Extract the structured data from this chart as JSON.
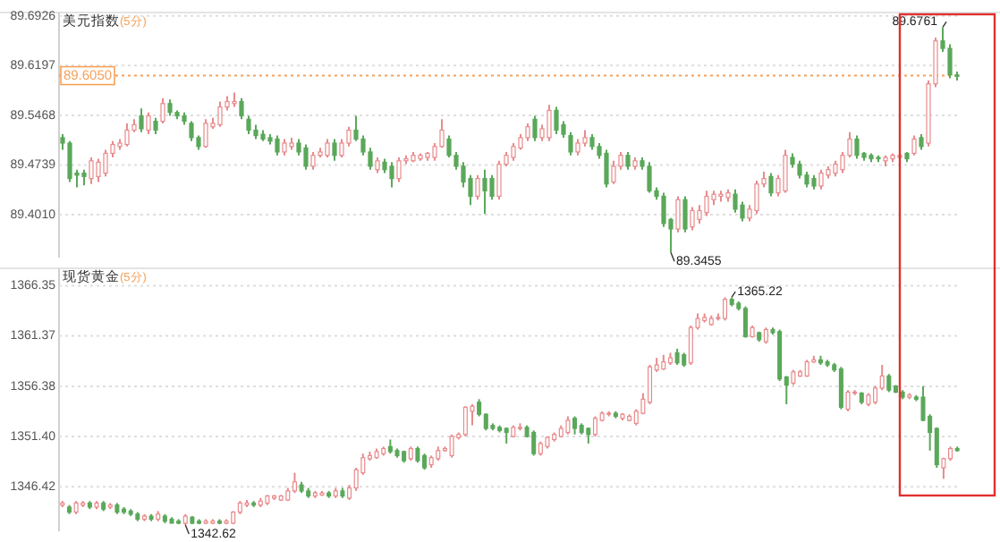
{
  "chart_data": [
    {
      "type": "candlestick",
      "title": "美元指数",
      "subtitle": "(5分)",
      "tick_labels": "y",
      "grid": "y",
      "ylim": [
        89.338,
        89.695
      ],
      "yticks": [
        {
          "value": 89.401,
          "label": "89.4010"
        },
        89.4739,
        89.5468,
        89.6197,
        89.6926
      ],
      "ref_lines": [
        {
          "axis": "y",
          "value": 89.605,
          "label": "89.6050",
          "color": "#f5a15a",
          "line_style": "dotted"
        }
      ],
      "annotations": [
        "89.6761",
        "89.3455"
      ],
      "categories": [
        null,
        null,
        null,
        null,
        null,
        null,
        null,
        null,
        null,
        null,
        null,
        null,
        null,
        null,
        null,
        null,
        null,
        null,
        null,
        null,
        null,
        null,
        null,
        null,
        null,
        null,
        null,
        null,
        null,
        null,
        null,
        null,
        null,
        null,
        null,
        null,
        null,
        null,
        null,
        null,
        null,
        null,
        null,
        null,
        null,
        null,
        null,
        null,
        null,
        null,
        null,
        null,
        null,
        null,
        null,
        null,
        null,
        null,
        null,
        null,
        null,
        null,
        null,
        null,
        null,
        null,
        null,
        null,
        null,
        null,
        null,
        null,
        null,
        null,
        null,
        null,
        null,
        null,
        null,
        null,
        null,
        null,
        null,
        null,
        null,
        null,
        null,
        null,
        null,
        null,
        null,
        null,
        null,
        null,
        null,
        null,
        null,
        null,
        null,
        null,
        null,
        null,
        null,
        null,
        null,
        null,
        null,
        null,
        null,
        null,
        null,
        null,
        null,
        null,
        null,
        null,
        null,
        null,
        null,
        null,
        null,
        null,
        null,
        null,
        null,
        null
      ],
      "ohlc": [
        [
          89.514,
          89.519,
          89.496,
          89.506
        ],
        [
          89.506,
          89.509,
          89.449,
          89.454
        ],
        [
          89.462,
          89.467,
          89.441,
          89.459
        ],
        [
          89.462,
          89.467,
          89.444,
          89.457
        ],
        [
          89.454,
          89.485,
          89.446,
          89.48
        ],
        [
          89.457,
          89.483,
          89.449,
          89.478
        ],
        [
          89.462,
          89.496,
          89.457,
          89.491
        ],
        [
          89.491,
          89.509,
          89.485,
          89.504
        ],
        [
          89.501,
          89.512,
          89.496,
          89.506
        ],
        [
          89.504,
          89.535,
          89.501,
          89.525
        ],
        [
          89.525,
          89.541,
          89.522,
          89.533
        ],
        [
          89.546,
          89.557,
          89.522,
          89.527
        ],
        [
          89.525,
          89.551,
          89.519,
          89.546
        ],
        [
          89.538,
          89.543,
          89.519,
          89.525
        ],
        [
          89.538,
          89.572,
          89.535,
          89.564
        ],
        [
          89.564,
          89.57,
          89.546,
          89.551
        ],
        [
          89.551,
          89.554,
          89.541,
          89.546
        ],
        [
          89.546,
          89.551,
          89.533,
          89.538
        ],
        [
          89.535,
          89.538,
          89.509,
          89.514
        ],
        [
          89.514,
          89.517,
          89.496,
          89.501
        ],
        [
          89.501,
          89.541,
          89.499,
          89.535
        ],
        [
          89.53,
          89.543,
          89.527,
          89.535
        ],
        [
          89.533,
          89.567,
          89.53,
          89.559
        ],
        [
          89.559,
          89.575,
          89.554,
          89.567
        ],
        [
          89.564,
          89.58,
          89.559,
          89.567
        ],
        [
          89.567,
          89.572,
          89.541,
          89.546
        ],
        [
          89.541,
          89.546,
          89.519,
          89.525
        ],
        [
          89.525,
          89.533,
          89.512,
          89.517
        ],
        [
          89.519,
          89.525,
          89.509,
          89.512
        ],
        [
          89.514,
          89.519,
          89.504,
          89.509
        ],
        [
          89.512,
          89.517,
          89.488,
          89.493
        ],
        [
          89.493,
          89.512,
          89.488,
          89.506
        ],
        [
          89.501,
          89.514,
          89.496,
          89.506
        ],
        [
          89.506,
          89.512,
          89.488,
          89.493
        ],
        [
          89.499,
          89.504,
          89.467,
          89.472
        ],
        [
          89.472,
          89.493,
          89.467,
          89.488
        ],
        [
          89.488,
          89.499,
          89.485,
          89.493
        ],
        [
          89.488,
          89.512,
          89.485,
          89.506
        ],
        [
          89.506,
          89.512,
          89.48,
          89.488
        ],
        [
          89.488,
          89.512,
          89.485,
          89.506
        ],
        [
          89.506,
          89.53,
          89.501,
          89.525
        ],
        [
          89.525,
          89.546,
          89.509,
          89.512
        ],
        [
          89.512,
          89.517,
          89.488,
          89.493
        ],
        [
          89.493,
          89.499,
          89.467,
          89.472
        ],
        [
          89.467,
          89.485,
          89.462,
          89.48
        ],
        [
          89.478,
          89.483,
          89.462,
          89.467
        ],
        [
          89.472,
          89.478,
          89.441,
          89.454
        ],
        [
          89.454,
          89.485,
          89.449,
          89.48
        ],
        [
          89.48,
          89.488,
          89.475,
          89.483
        ],
        [
          89.48,
          89.493,
          89.478,
          89.488
        ],
        [
          89.483,
          89.491,
          89.48,
          89.488
        ],
        [
          89.485,
          89.493,
          89.48,
          89.491
        ],
        [
          89.485,
          89.506,
          89.48,
          89.501
        ],
        [
          89.501,
          89.541,
          89.499,
          89.525
        ],
        [
          89.512,
          89.517,
          89.485,
          89.488
        ],
        [
          89.488,
          89.493,
          89.467,
          89.472
        ],
        [
          89.472,
          89.478,
          89.441,
          89.449
        ],
        [
          89.454,
          89.459,
          89.415,
          89.428
        ],
        [
          89.428,
          89.459,
          89.423,
          89.454
        ],
        [
          89.454,
          89.467,
          89.402,
          89.436
        ],
        [
          89.454,
          89.459,
          89.423,
          89.428
        ],
        [
          89.428,
          89.48,
          89.423,
          89.475
        ],
        [
          89.475,
          89.493,
          89.472,
          89.488
        ],
        [
          89.485,
          89.506,
          89.48,
          89.501
        ],
        [
          89.499,
          89.519,
          89.496,
          89.514
        ],
        [
          89.514,
          89.535,
          89.509,
          89.53
        ],
        [
          89.541,
          89.546,
          89.509,
          89.514
        ],
        [
          89.514,
          89.533,
          89.509,
          89.527
        ],
        [
          89.514,
          89.562,
          89.509,
          89.554
        ],
        [
          89.554,
          89.559,
          89.519,
          89.525
        ],
        [
          89.533,
          89.538,
          89.514,
          89.519
        ],
        [
          89.517,
          89.522,
          89.488,
          89.493
        ],
        [
          89.493,
          89.512,
          89.488,
          89.506
        ],
        [
          89.506,
          89.525,
          89.501,
          89.514
        ],
        [
          89.514,
          89.519,
          89.496,
          89.501
        ],
        [
          89.501,
          89.506,
          89.483,
          89.488
        ],
        [
          89.491,
          89.496,
          89.441,
          89.446
        ],
        [
          89.449,
          89.48,
          89.446,
          89.472
        ],
        [
          89.472,
          89.493,
          89.467,
          89.488
        ],
        [
          89.488,
          89.493,
          89.467,
          89.472
        ],
        [
          89.472,
          89.485,
          89.467,
          89.48
        ],
        [
          89.48,
          89.485,
          89.467,
          89.472
        ],
        [
          89.472,
          89.478,
          89.433,
          89.436
        ],
        [
          89.436,
          89.441,
          89.423,
          89.428
        ],
        [
          89.428,
          89.433,
          89.383,
          89.388
        ],
        [
          89.394,
          89.396,
          89.3455,
          89.38
        ],
        [
          89.38,
          89.428,
          89.375,
          89.423
        ],
        [
          89.423,
          89.428,
          89.375,
          89.38
        ],
        [
          89.383,
          89.412,
          89.378,
          89.407
        ],
        [
          89.394,
          89.415,
          89.388,
          89.407
        ],
        [
          89.404,
          89.436,
          89.399,
          89.428
        ],
        [
          89.423,
          89.436,
          89.415,
          89.431
        ],
        [
          89.428,
          89.436,
          89.42,
          89.431
        ],
        [
          89.426,
          89.438,
          89.42,
          89.433
        ],
        [
          89.431,
          89.438,
          89.404,
          89.409
        ],
        [
          89.415,
          89.42,
          89.391,
          89.396
        ],
        [
          89.396,
          89.415,
          89.391,
          89.409
        ],
        [
          89.407,
          89.451,
          89.402,
          89.446
        ],
        [
          89.446,
          89.464,
          89.441,
          89.454
        ],
        [
          89.457,
          89.462,
          89.428,
          89.433
        ],
        [
          89.433,
          89.459,
          89.428,
          89.454
        ],
        [
          89.436,
          89.496,
          89.433,
          89.488
        ],
        [
          89.485,
          89.491,
          89.47,
          89.475
        ],
        [
          89.475,
          89.48,
          89.454,
          89.459
        ],
        [
          89.459,
          89.464,
          89.441,
          89.446
        ],
        [
          89.454,
          89.459,
          89.438,
          89.443
        ],
        [
          89.443,
          89.467,
          89.438,
          89.462
        ],
        [
          89.459,
          89.472,
          89.454,
          89.467
        ],
        [
          89.462,
          89.48,
          89.457,
          89.475
        ],
        [
          89.467,
          89.493,
          89.462,
          89.488
        ],
        [
          89.488,
          89.522,
          89.485,
          89.512
        ],
        [
          89.512,
          89.517,
          89.483,
          89.488
        ],
        [
          89.491,
          89.493,
          89.48,
          89.485
        ],
        [
          89.488,
          89.491,
          89.478,
          89.483
        ],
        [
          89.485,
          89.488,
          89.478,
          89.483
        ],
        [
          89.48,
          89.488,
          89.472,
          89.485
        ],
        [
          89.483,
          89.491,
          89.478,
          89.488
        ],
        [
          89.485,
          89.491,
          89.48,
          89.488
        ],
        [
          89.491,
          89.493,
          89.478,
          89.483
        ],
        [
          89.491,
          89.517,
          89.488,
          89.512
        ],
        [
          89.514,
          89.519,
          89.496,
          89.501
        ],
        [
          89.506,
          89.598,
          89.501,
          89.593
        ],
        [
          89.593,
          89.661,
          89.588,
          89.656
        ],
        [
          89.656,
          89.6761,
          89.64,
          89.645
        ],
        [
          89.645,
          89.651,
          89.601,
          89.606
        ],
        [
          89.606,
          89.611,
          89.598,
          89.604
        ]
      ]
    },
    {
      "type": "candlestick",
      "title": "现货黄金",
      "subtitle": "(5分)",
      "tick_labels": "y",
      "grid": "y",
      "ylim": [
        1342.0,
        1367.9
      ],
      "yticks": [
        1346.42,
        {
          "value": 1351.4,
          "label": "1351.40"
        },
        1356.38,
        1361.37,
        1366.35
      ],
      "annotations": [
        "1365.22",
        "1342.62"
      ],
      "categories": [
        null,
        null,
        null,
        null,
        null,
        null,
        null,
        null,
        null,
        null,
        null,
        null,
        null,
        null,
        null,
        null,
        null,
        null,
        null,
        null,
        null,
        null,
        null,
        null,
        null,
        null,
        null,
        null,
        null,
        null,
        null,
        null,
        null,
        null,
        null,
        null,
        null,
        null,
        null,
        null,
        null,
        null,
        null,
        null,
        null,
        null,
        null,
        null,
        null,
        null,
        null,
        null,
        null,
        null,
        null,
        null,
        null,
        null,
        null,
        null,
        null,
        null,
        null,
        null,
        null,
        null,
        null,
        null,
        null,
        null,
        null,
        null,
        null,
        null,
        null,
        null,
        null,
        null,
        null,
        null,
        null,
        null,
        null,
        null,
        null,
        null,
        null,
        null,
        null,
        null,
        null,
        null,
        null,
        null,
        null,
        null,
        null,
        null,
        null,
        null,
        null,
        null,
        null,
        null,
        null,
        null,
        null,
        null,
        null,
        null,
        null,
        null,
        null,
        null,
        null,
        null,
        null,
        null,
        null,
        null,
        null,
        null,
        null,
        null,
        null,
        null,
        null,
        null,
        null,
        null,
        null,
        null
      ],
      "ohlc": [
        [
          1344.6,
          1345.0,
          1344.4,
          1344.8
        ],
        [
          1344.4,
          1344.6,
          1343.7,
          1343.9
        ],
        [
          1343.9,
          1345.0,
          1343.7,
          1344.8
        ],
        [
          1344.6,
          1345.0,
          1344.4,
          1344.8
        ],
        [
          1344.8,
          1345.0,
          1344.2,
          1344.4
        ],
        [
          1344.4,
          1345.0,
          1344.2,
          1344.8
        ],
        [
          1344.8,
          1345.0,
          1344.0,
          1344.2
        ],
        [
          1344.4,
          1344.8,
          1344.2,
          1344.6
        ],
        [
          1344.6,
          1344.8,
          1343.7,
          1343.9
        ],
        [
          1344.2,
          1344.4,
          1343.7,
          1343.9
        ],
        [
          1344.0,
          1344.2,
          1343.5,
          1343.7
        ],
        [
          1343.7,
          1343.9,
          1343.0,
          1343.2
        ],
        [
          1343.2,
          1343.7,
          1343.0,
          1343.5
        ],
        [
          1343.5,
          1343.7,
          1343.0,
          1343.2
        ],
        [
          1343.2,
          1344.0,
          1343.0,
          1343.7
        ],
        [
          1343.5,
          1343.7,
          1342.8,
          1343.0
        ],
        [
          1343.2,
          1343.4,
          1342.8,
          1342.8
        ],
        [
          1343.0,
          1343.2,
          1342.7,
          1342.8
        ],
        [
          1342.8,
          1343.7,
          1342.62,
          1343.5
        ],
        [
          1343.4,
          1343.5,
          1342.7,
          1342.8
        ],
        [
          1343.0,
          1343.2,
          1342.7,
          1342.8
        ],
        [
          1342.8,
          1343.2,
          1342.7,
          1343.0
        ],
        [
          1342.8,
          1343.2,
          1342.7,
          1343.0
        ],
        [
          1343.0,
          1343.2,
          1342.7,
          1342.8
        ],
        [
          1342.8,
          1343.2,
          1342.7,
          1343.0
        ],
        [
          1342.8,
          1344.0,
          1342.7,
          1343.9
        ],
        [
          1343.9,
          1345.0,
          1343.7,
          1344.8
        ],
        [
          1344.6,
          1345.1,
          1344.4,
          1344.8
        ],
        [
          1344.8,
          1345.0,
          1344.4,
          1344.6
        ],
        [
          1344.6,
          1345.3,
          1344.4,
          1345.0
        ],
        [
          1344.8,
          1345.6,
          1344.6,
          1345.5
        ],
        [
          1345.3,
          1345.6,
          1345.1,
          1345.5
        ],
        [
          1345.1,
          1345.6,
          1345.0,
          1345.5
        ],
        [
          1345.1,
          1346.3,
          1345.0,
          1346.0
        ],
        [
          1346.0,
          1347.8,
          1345.8,
          1346.9
        ],
        [
          1346.6,
          1346.9,
          1345.8,
          1346.0
        ],
        [
          1346.0,
          1346.3,
          1345.3,
          1345.5
        ],
        [
          1345.5,
          1346.0,
          1345.3,
          1345.8
        ],
        [
          1345.6,
          1346.0,
          1345.5,
          1345.8
        ],
        [
          1345.8,
          1346.0,
          1345.3,
          1345.5
        ],
        [
          1345.5,
          1346.3,
          1345.3,
          1346.0
        ],
        [
          1346.0,
          1346.3,
          1345.3,
          1345.5
        ],
        [
          1345.3,
          1346.6,
          1345.1,
          1346.3
        ],
        [
          1346.3,
          1348.3,
          1346.0,
          1348.1
        ],
        [
          1347.8,
          1349.7,
          1347.6,
          1349.3
        ],
        [
          1349.2,
          1349.9,
          1349.0,
          1349.5
        ],
        [
          1349.3,
          1350.2,
          1349.2,
          1349.9
        ],
        [
          1349.7,
          1350.4,
          1349.5,
          1350.2
        ],
        [
          1350.4,
          1351.1,
          1349.7,
          1349.9
        ],
        [
          1350.0,
          1350.2,
          1349.3,
          1349.5
        ],
        [
          1349.9,
          1350.0,
          1348.8,
          1349.0
        ],
        [
          1349.2,
          1350.4,
          1349.0,
          1350.2
        ],
        [
          1350.2,
          1350.4,
          1348.8,
          1349.0
        ],
        [
          1349.5,
          1349.7,
          1348.1,
          1348.3
        ],
        [
          1348.6,
          1349.5,
          1348.3,
          1349.3
        ],
        [
          1349.2,
          1350.4,
          1349.0,
          1350.0
        ],
        [
          1350.0,
          1350.4,
          1349.9,
          1350.2
        ],
        [
          1349.5,
          1351.6,
          1349.3,
          1351.4
        ],
        [
          1351.3,
          1351.8,
          1351.1,
          1351.6
        ],
        [
          1351.6,
          1354.4,
          1351.4,
          1354.3
        ],
        [
          1353.9,
          1354.6,
          1352.5,
          1354.4
        ],
        [
          1354.8,
          1355.1,
          1353.4,
          1353.6
        ],
        [
          1353.6,
          1353.7,
          1352.0,
          1352.2
        ],
        [
          1352.5,
          1352.7,
          1352.0,
          1352.2
        ],
        [
          1352.3,
          1352.5,
          1351.8,
          1352.0
        ],
        [
          1352.2,
          1352.3,
          1350.7,
          1351.8
        ],
        [
          1351.4,
          1352.5,
          1351.3,
          1352.3
        ],
        [
          1352.2,
          1352.7,
          1352.0,
          1352.3
        ],
        [
          1352.3,
          1352.5,
          1351.3,
          1351.4
        ],
        [
          1351.8,
          1352.0,
          1349.5,
          1349.7
        ],
        [
          1349.7,
          1350.9,
          1349.5,
          1350.7
        ],
        [
          1350.4,
          1351.4,
          1350.2,
          1351.3
        ],
        [
          1351.1,
          1351.8,
          1350.9,
          1351.6
        ],
        [
          1351.4,
          1352.5,
          1351.3,
          1352.2
        ],
        [
          1351.8,
          1353.4,
          1351.6,
          1353.0
        ],
        [
          1353.2,
          1353.4,
          1351.6,
          1352.2
        ],
        [
          1352.5,
          1352.7,
          1351.6,
          1351.8
        ],
        [
          1352.2,
          1352.3,
          1350.7,
          1351.6
        ],
        [
          1351.6,
          1353.4,
          1351.4,
          1353.2
        ],
        [
          1353.0,
          1353.9,
          1352.9,
          1353.7
        ],
        [
          1353.6,
          1353.9,
          1353.4,
          1353.7
        ],
        [
          1353.7,
          1353.9,
          1353.2,
          1353.4
        ],
        [
          1353.2,
          1353.7,
          1353.0,
          1353.6
        ],
        [
          1353.0,
          1353.6,
          1352.9,
          1353.4
        ],
        [
          1352.7,
          1354.1,
          1352.5,
          1353.9
        ],
        [
          1353.7,
          1355.7,
          1353.6,
          1355.1
        ],
        [
          1354.8,
          1358.5,
          1354.6,
          1358.3
        ],
        [
          1358.0,
          1359.2,
          1357.8,
          1358.5
        ],
        [
          1358.1,
          1359.5,
          1358.0,
          1358.8
        ],
        [
          1358.7,
          1359.7,
          1358.5,
          1359.2
        ],
        [
          1359.7,
          1360.1,
          1358.5,
          1358.7
        ],
        [
          1359.5,
          1359.7,
          1358.3,
          1358.5
        ],
        [
          1358.7,
          1362.4,
          1358.5,
          1362.2
        ],
        [
          1362.2,
          1363.6,
          1362.0,
          1363.1
        ],
        [
          1362.9,
          1363.6,
          1362.7,
          1363.2
        ],
        [
          1362.5,
          1363.4,
          1362.4,
          1363.1
        ],
        [
          1363.1,
          1363.6,
          1362.9,
          1363.2
        ],
        [
          1363.1,
          1365.2,
          1362.9,
          1365.0
        ],
        [
          1365.0,
          1365.22,
          1364.3,
          1364.5
        ],
        [
          1364.6,
          1364.8,
          1363.9,
          1364.1
        ],
        [
          1364.1,
          1364.3,
          1361.2,
          1361.3
        ],
        [
          1361.3,
          1362.4,
          1361.2,
          1362.2
        ],
        [
          1361.7,
          1361.8,
          1360.8,
          1361.0
        ],
        [
          1360.8,
          1362.2,
          1360.6,
          1362.0
        ],
        [
          1362.0,
          1362.2,
          1361.5,
          1361.7
        ],
        [
          1361.8,
          1362.0,
          1356.9,
          1357.1
        ],
        [
          1357.3,
          1357.4,
          1354.6,
          1356.5
        ],
        [
          1356.7,
          1358.0,
          1356.5,
          1357.8
        ],
        [
          1357.4,
          1358.0,
          1357.3,
          1357.8
        ],
        [
          1357.4,
          1359.0,
          1357.3,
          1358.8
        ],
        [
          1358.8,
          1359.4,
          1358.7,
          1359.0
        ],
        [
          1359.0,
          1359.4,
          1358.5,
          1358.7
        ],
        [
          1358.8,
          1359.0,
          1358.3,
          1358.5
        ],
        [
          1358.5,
          1358.7,
          1357.8,
          1358.0
        ],
        [
          1358.1,
          1358.3,
          1354.1,
          1354.3
        ],
        [
          1354.1,
          1356.0,
          1353.9,
          1355.8
        ],
        [
          1355.7,
          1356.0,
          1355.5,
          1355.8
        ],
        [
          1355.7,
          1355.8,
          1354.6,
          1354.8
        ],
        [
          1354.6,
          1355.7,
          1354.4,
          1355.5
        ],
        [
          1354.8,
          1356.4,
          1354.6,
          1356.2
        ],
        [
          1356.2,
          1358.5,
          1356.0,
          1357.4
        ],
        [
          1357.4,
          1357.6,
          1355.8,
          1356.0
        ],
        [
          1356.4,
          1356.5,
          1355.7,
          1355.8
        ],
        [
          1355.8,
          1356.0,
          1355.1,
          1355.3
        ],
        [
          1355.3,
          1355.7,
          1355.1,
          1355.5
        ],
        [
          1355.3,
          1355.5,
          1354.9,
          1355.1
        ],
        [
          1355.3,
          1356.4,
          1352.9,
          1353.0
        ],
        [
          1353.4,
          1353.6,
          1350.0,
          1351.8
        ],
        [
          1352.2,
          1352.3,
          1348.3,
          1348.6
        ],
        [
          1348.3,
          1349.3,
          1347.2,
          1349.2
        ],
        [
          1349.2,
          1350.4,
          1349.0,
          1350.2
        ],
        [
          1350.2,
          1350.4,
          1349.9,
          1350.0
        ]
      ]
    }
  ]
}
